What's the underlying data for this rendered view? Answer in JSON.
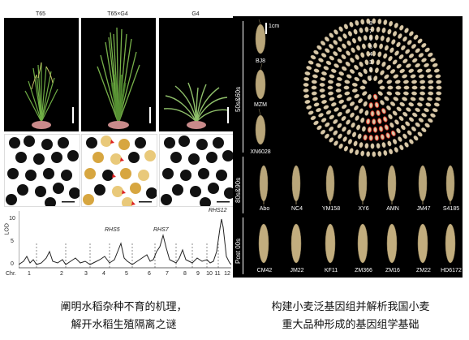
{
  "left": {
    "plant_labels": [
      "T65",
      "T65×G4",
      "G4"
    ],
    "chart": {
      "ylabel": "LOD",
      "yticks": [
        "10",
        "5",
        "0"
      ],
      "xlabel_prefix": "Chr.",
      "chromosomes": [
        "1",
        "2",
        "3",
        "4",
        "5",
        "6",
        "7",
        "8",
        "9",
        "10",
        "11",
        "12"
      ],
      "annotations": [
        "RHS5",
        "RHS7",
        "RHS12"
      ]
    },
    "caption_line1": "阐明水稻杂种不育的机理，",
    "caption_line2": "解开水稻生殖隔离之谜"
  },
  "right": {
    "scale_label": "1cm",
    "ring_numbers": [
      "8",
      "7",
      "6",
      "5",
      "4",
      "3",
      "2",
      "1"
    ],
    "era_labels": [
      "50s&60s",
      "80s&90s",
      "Post 00s"
    ],
    "row1": [
      "BJ8",
      "MZM",
      "XN6028"
    ],
    "row2": [
      "Abo",
      "NC4",
      "YM158",
      "XY6",
      "AMN",
      "JM47",
      "S4185"
    ],
    "row3": [
      "CM42",
      "JM22",
      "KF11",
      "ZM366",
      "ZM16",
      "ZM22",
      "HD6172"
    ],
    "caption_line1": "构建小麦泛基因组并解析我国小麦",
    "caption_line2": "重大品种形成的基因组学基础"
  },
  "colors": {
    "panel_bg": "#000000",
    "grain": "#d8c8a8",
    "highlight_red": "#e03a2a",
    "plant_green": "#5a9a3a"
  }
}
